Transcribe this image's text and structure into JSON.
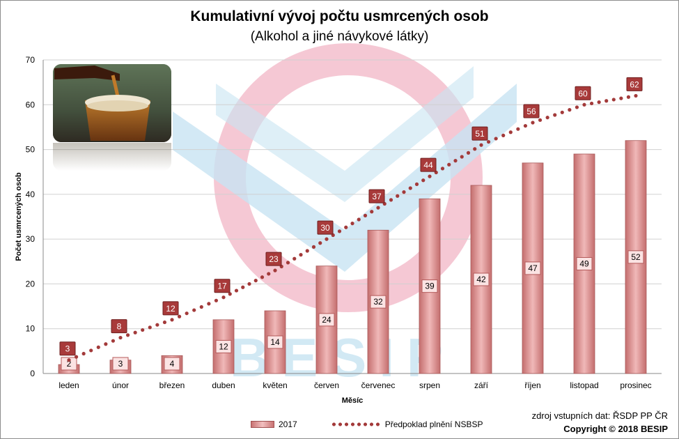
{
  "title": "Kumulativní vývoj počtu usmrcených osob",
  "subtitle": "(Alkohol a jiné návykové látky)",
  "watermark_text": "BESIP",
  "source_note": "zdroj vstupních dat: ŘSDP PP ČR",
  "copyright": "Copyright © 2018 BESIP",
  "colors": {
    "bar": "#d98a8a",
    "bar_edge": "#a85858",
    "target_dots": "#a33a3a",
    "target_label_bg": "#a83a3a",
    "logo_red": "#f2b6c6",
    "logo_blue": "#c8e4f2"
  },
  "chart_data": {
    "type": "bar",
    "title": "Kumulativní vývoj počtu usmrcených osob",
    "subtitle": "(Alkohol a jiné návykové látky)",
    "xlabel": "Měsíc",
    "ylabel": "Počet usmrcených osob",
    "ylim": [
      0,
      70
    ],
    "yticks": [
      0,
      10,
      20,
      30,
      40,
      50,
      60,
      70
    ],
    "grid": true,
    "legend": "bottom",
    "categories": [
      "leden",
      "únor",
      "březen",
      "duben",
      "květen",
      "červen",
      "červenec",
      "srpen",
      "září",
      "říjen",
      "listopad",
      "prosinec"
    ],
    "series": [
      {
        "name": "2017",
        "type": "bar",
        "values": [
          2,
          3,
          4,
          12,
          14,
          24,
          32,
          39,
          42,
          47,
          49,
          52
        ]
      },
      {
        "name": "Předpoklad plnění NSBSP",
        "type": "line-dotted",
        "values": [
          3,
          8,
          12,
          17,
          23,
          30,
          37,
          44,
          51,
          56,
          60,
          62
        ]
      }
    ]
  }
}
